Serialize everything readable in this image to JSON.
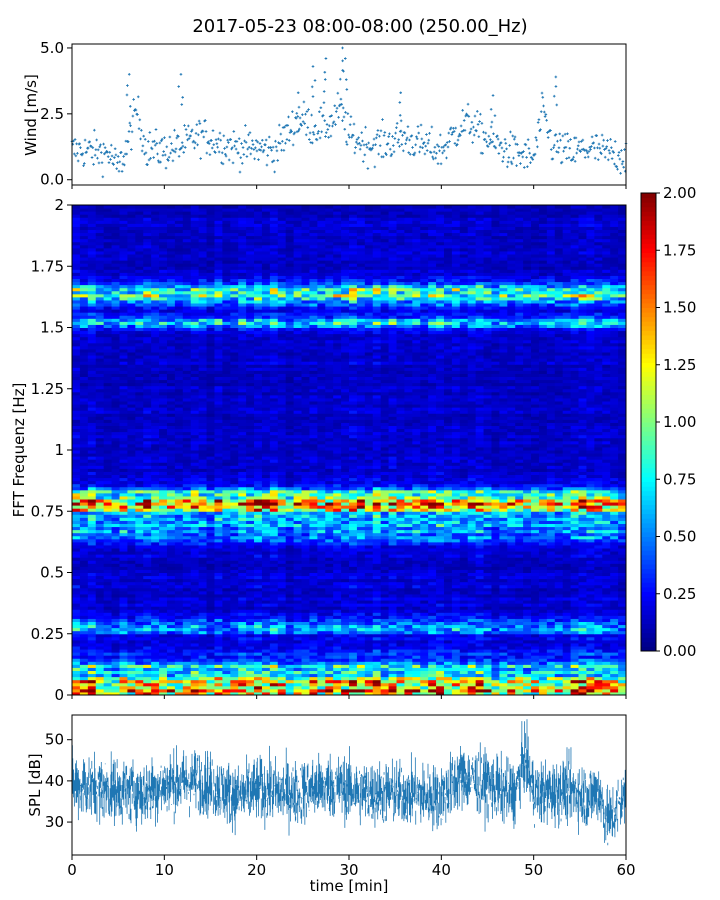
{
  "title": "2017-05-23 08:00-08:00 (250.00_Hz)",
  "chart_data": [
    {
      "type": "scatter",
      "ylabel": "Wind [m/s]",
      "xlim": [
        0,
        60
      ],
      "ylim": [
        -0.2,
        5.15
      ],
      "yticks": [
        "0.0",
        "2.5",
        "5.0"
      ],
      "marker": "+",
      "color": "#1f77b4",
      "envelope": {
        "x": [
          0,
          2,
          4,
          5,
          6,
          7,
          8,
          10,
          12,
          14,
          16,
          18,
          20,
          22,
          24,
          25,
          26,
          28,
          29,
          30,
          32,
          34,
          36,
          38,
          40,
          42,
          43,
          44,
          46,
          48,
          50,
          51,
          52,
          54,
          56,
          58,
          60
        ],
        "y": [
          1.1,
          1.1,
          1.0,
          0.4,
          1.3,
          2.7,
          1.2,
          1.1,
          1.3,
          1.7,
          1.4,
          1.2,
          1.2,
          1.1,
          2.1,
          2.3,
          2.0,
          2.1,
          2.7,
          1.7,
          1.3,
          1.4,
          1.6,
          1.3,
          1.1,
          2.0,
          2.2,
          1.8,
          1.3,
          1.0,
          0.8,
          2.6,
          1.3,
          1.0,
          1.2,
          1.0,
          0.9
        ]
      },
      "peaks": [
        [
          6.2,
          4.0
        ],
        [
          11.8,
          4.0
        ],
        [
          24.5,
          3.3
        ],
        [
          26.1,
          4.3
        ],
        [
          27.5,
          4.6
        ],
        [
          29.3,
          5.0
        ],
        [
          29.6,
          4.6
        ],
        [
          35.6,
          3.3
        ],
        [
          45.6,
          3.2
        ],
        [
          52.4,
          3.9
        ]
      ]
    },
    {
      "type": "heatmap",
      "ylabel": "FFT Frequenz [Hz]",
      "xlim": [
        0,
        60
      ],
      "ylim": [
        0,
        2
      ],
      "yticks": [
        "0",
        "0.25",
        "0.5",
        "0.75",
        "1",
        "1.25",
        "1.5",
        "1.75",
        "2"
      ],
      "colormap": "jet",
      "bands": [
        {
          "f": 0.01,
          "level": 1.0,
          "width": 0.015
        },
        {
          "f": 0.04,
          "level": 0.9,
          "width": 0.025
        },
        {
          "f": 0.1,
          "level": 0.5,
          "width": 0.04
        },
        {
          "f": 0.28,
          "level": 0.45,
          "width": 0.02
        },
        {
          "f": 0.79,
          "level": 1.15,
          "width": 0.035
        },
        {
          "f": 0.68,
          "level": 0.45,
          "width": 0.04
        },
        {
          "f": 1.635,
          "level": 0.75,
          "width": 0.03
        },
        {
          "f": 1.52,
          "level": 0.45,
          "width": 0.02
        }
      ],
      "colorbar": {
        "vmin": 0,
        "vmax": 2,
        "ticks": [
          "0.00",
          "0.25",
          "0.50",
          "0.75",
          "1.00",
          "1.25",
          "1.50",
          "1.75",
          "2.00"
        ]
      }
    },
    {
      "type": "area",
      "ylabel": "SPL [dB]",
      "xlabel": "time [min]",
      "xlim": [
        0,
        60
      ],
      "ylim": [
        22,
        56
      ],
      "yticks": [
        "30",
        "40",
        "50"
      ],
      "xticks": [
        "0",
        "10",
        "20",
        "30",
        "40",
        "50",
        "60"
      ],
      "color": "#1f77b4",
      "mean": {
        "x": [
          0,
          4,
          8,
          10,
          14,
          18,
          20,
          24,
          28,
          32,
          36,
          40,
          42,
          44,
          46,
          48,
          49,
          50,
          52,
          54,
          56,
          57,
          58,
          59,
          60
        ],
        "y": [
          39,
          38,
          37,
          39,
          40,
          36,
          38,
          37,
          39,
          37,
          37,
          36,
          41,
          40,
          38,
          37,
          46,
          37,
          37,
          38,
          36,
          38,
          30,
          33,
          37
        ]
      },
      "spread": 7
    }
  ]
}
